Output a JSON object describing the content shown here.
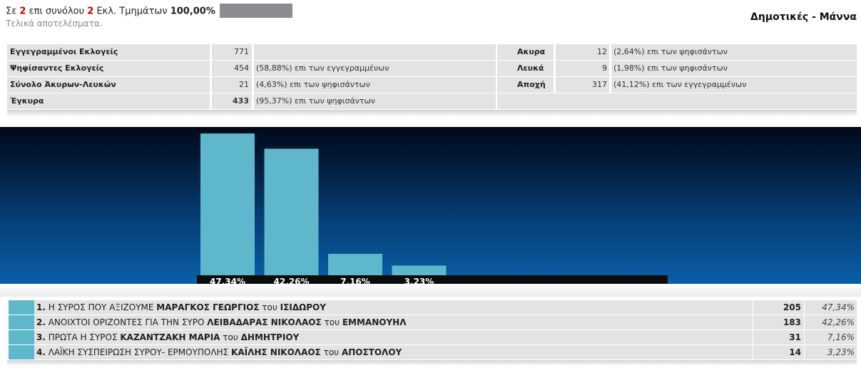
{
  "header": {
    "prefix": "Σε",
    "counted": "2",
    "middle": "επι συνόλου",
    "total": "2",
    "suffix": "Εκλ. Τμημάτων",
    "percent": "100,00%",
    "progress_fraction": 1.0,
    "status": "Τελικά αποτελέσματα.",
    "title": "Δημοτικές - Μάννα"
  },
  "stats": {
    "registered": {
      "label": "Εγγεγραμμένοι Εκλογείς",
      "value": "771",
      "desc": ""
    },
    "voted": {
      "label": "Ψηφίσαντες Εκλογείς",
      "value": "454",
      "desc": "(58,88%) επι των εγγεγραμμένων"
    },
    "invalid_blank": {
      "label": "Σύνολο Άκυρων-Λευκών",
      "value": "21",
      "desc": "(4,63%) επι των ψηφισάντων"
    },
    "valid": {
      "label": "Έγκυρα",
      "value": "433",
      "desc": "(95,37%) επι των ψηφισάντων"
    },
    "invalid": {
      "label": "Ακυρα",
      "value": "12",
      "desc": "(2,64%) επι των ψηφισάντων"
    },
    "blank": {
      "label": "Λευκά",
      "value": "9",
      "desc": "(1,98%) επι των ψηφισάντων"
    },
    "abstention": {
      "label": "Αποχή",
      "value": "317",
      "desc": "(41,12%) επι των εγγεγραμμένων"
    }
  },
  "chart_data": {
    "type": "bar",
    "categories": [
      "1",
      "2",
      "3",
      "4"
    ],
    "values": [
      47.34,
      42.26,
      7.16,
      3.23
    ],
    "labels": [
      "47,34%",
      "42,26%",
      "7,16%",
      "3,23%"
    ],
    "ylim": [
      0,
      50
    ],
    "color": "#5fb7cb",
    "grid": false
  },
  "results": [
    {
      "rank": "1.",
      "list": "Η ΣΥΡΟΣ ΠΟΥ ΑΞΙΖΟΥΜΕ",
      "candidate": "ΜΑΡΑΓΚΟΣ ΓΕΩΡΓΙΟΣ",
      "of": "του",
      "father": "ΙΣΙΔΩΡΟΥ",
      "votes": "205",
      "pct": "47,34%"
    },
    {
      "rank": "2.",
      "list": "ΑΝΟΙΧΤΟΙ ΟΡΙΖΟΝΤΕΣ ΓΙΑ ΤΗΝ ΣΥΡΟ",
      "candidate": "ΛΕΙΒΑΔΑΡΑΣ ΝΙΚΟΛΑΟΣ",
      "of": "του",
      "father": "ΕΜΜΑΝΟΥΗΛ",
      "votes": "183",
      "pct": "42,26%"
    },
    {
      "rank": "3.",
      "list": "ΠΡΩΤΑ Η ΣΥΡΟΣ",
      "candidate": "ΚΑΖΑΝΤΖΑΚΗ ΜΑΡΙΑ",
      "of": "του",
      "father": "ΔΗΜΗΤΡΙΟΥ",
      "votes": "31",
      "pct": "7,16%"
    },
    {
      "rank": "4.",
      "list": "ΛΑΪΚΗ ΣΥΣΠΕΙΡΩΣΗ ΣΥΡΟΥ- ΕΡΜΟΥΠΟΛΗΣ",
      "candidate": "ΚΑΪΛΗΣ ΝΙΚΟΛΑΟΣ",
      "of": "του",
      "father": "ΑΠΟΣΤΟΛΟΥ",
      "votes": "14",
      "pct": "3,23%"
    }
  ],
  "colors": {
    "swatch": "#5fb7cb",
    "accent": "#c00000",
    "progress": "#8a8c91"
  }
}
